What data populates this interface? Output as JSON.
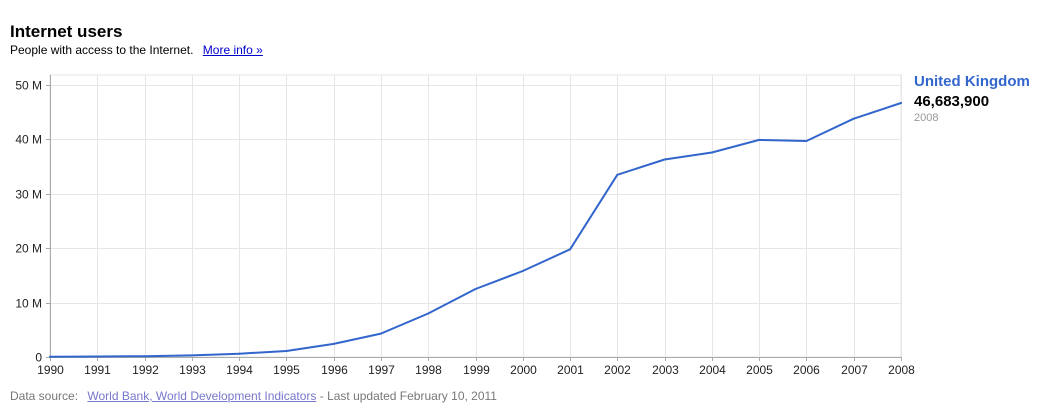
{
  "header": {
    "title": "Internet users",
    "subtitle": "People with access to the Internet.",
    "more_info_label": "More info »"
  },
  "legend": {
    "series_name": "United Kingdom",
    "value": "46,683,900",
    "year": "2008"
  },
  "footer": {
    "prefix": "Data source:",
    "source_link": "World Bank, World Development Indicators",
    "updated": "- Last updated February 10, 2011"
  },
  "colors": {
    "series": "#3366cc",
    "grid": "#e6e6e6",
    "axis": "#aaaaaa",
    "link": "#0000cc"
  },
  "chart_data": {
    "type": "line",
    "title": "Internet users",
    "subtitle": "People with access to the Internet.",
    "xlabel": "",
    "ylabel": "",
    "x": [
      1990,
      1991,
      1992,
      1993,
      1994,
      1995,
      1996,
      1997,
      1998,
      1999,
      2000,
      2001,
      2002,
      2003,
      2004,
      2005,
      2006,
      2007,
      2008
    ],
    "series": [
      {
        "name": "United Kingdom",
        "color": "#3366cc",
        "values": [
          50000,
          100000,
          150000,
          300000,
          600000,
          1100000,
          2400000,
          4300000,
          8000000,
          12500000,
          15800000,
          19800000,
          33500000,
          36300000,
          37600000,
          39900000,
          39700000,
          43800000,
          46683900
        ]
      }
    ],
    "ylim": [
      0,
      50000000
    ],
    "y_ticks": [
      0,
      10000000,
      20000000,
      30000000,
      40000000,
      50000000
    ],
    "y_tick_labels": [
      "0",
      "10 M",
      "20 M",
      "30 M",
      "40 M",
      "50 M"
    ],
    "x_tick_labels": [
      "1990",
      "1991",
      "1992",
      "1993",
      "1994",
      "1995",
      "1996",
      "1997",
      "1998",
      "1999",
      "2000",
      "2001",
      "2002",
      "2003",
      "2004",
      "2005",
      "2006",
      "2007",
      "2008"
    ],
    "grid": true,
    "legend_position": "right"
  }
}
